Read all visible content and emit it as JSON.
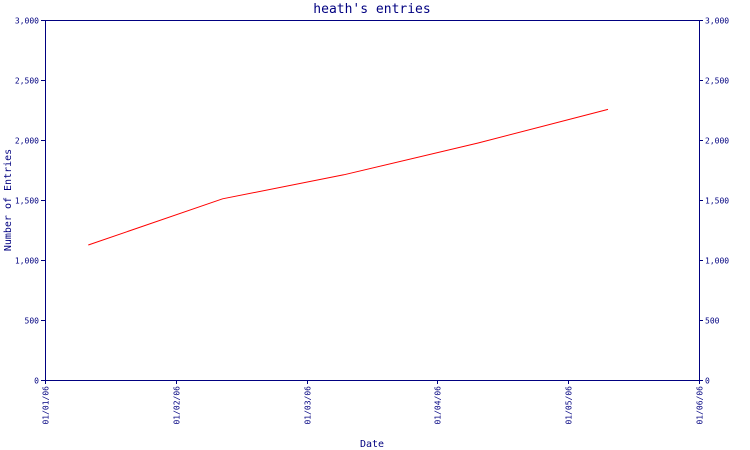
{
  "chart_data": {
    "type": "line",
    "title": "heath's entries",
    "xlabel": "Date",
    "ylabel": "Number of Entries",
    "ylim": [
      0,
      3000
    ],
    "yticks": [
      "0",
      "500",
      "1,000",
      "1,500",
      "2,000",
      "2,500",
      "3,000"
    ],
    "ytick_values": [
      0,
      500,
      1000,
      1500,
      2000,
      2500,
      3000
    ],
    "x_ticks": [
      "01/01/06",
      "01/02/06",
      "01/03/06",
      "01/04/06",
      "01/05/06",
      "01/06/06"
    ],
    "xlim": [
      "2006-01-01",
      "2006-06-01"
    ],
    "grid": false,
    "right_axis": true,
    "series": [
      {
        "x": [
          "2006-01-11",
          "2006-02-11",
          "2006-03-11",
          "2006-04-11",
          "2006-05-11"
        ],
        "y": [
          1125,
          1510,
          1710,
          1975,
          2255
        ],
        "color": "#ff0000"
      }
    ]
  }
}
